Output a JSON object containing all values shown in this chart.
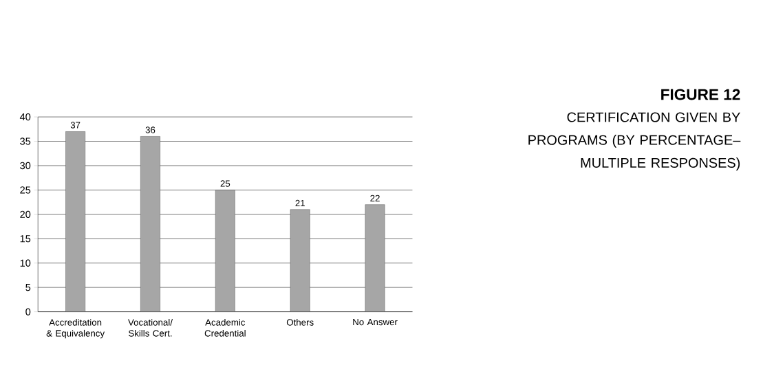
{
  "chart_data": {
    "type": "bar",
    "title": "FIGURE 12",
    "subtitle": "CERTIFICATION GIVEN BY PROGRAMS (BY PERCENTAGE– MULTIPLE RESPONSES)",
    "categories": [
      "Accreditation & Equivalency",
      "Vocational/ Skills Cert.",
      "Academic Credential",
      "Others",
      "No Answer"
    ],
    "values": [
      37,
      36,
      25,
      21,
      22
    ],
    "color": "#a6a6a6",
    "data_labels": true,
    "ylim": [
      0,
      40
    ],
    "yticks": [
      0,
      5,
      10,
      15,
      20,
      25,
      30,
      35,
      40
    ],
    "grid": "y"
  }
}
